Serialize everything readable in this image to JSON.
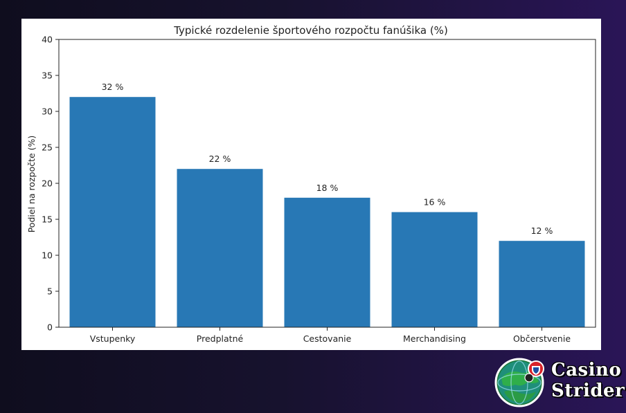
{
  "brand": {
    "line1": "Casino",
    "line2": "Strider"
  },
  "chart_data": {
    "type": "bar",
    "title": "Typické rozdelenie športového rozpočtu fanúšika (%)",
    "xlabel": "",
    "ylabel": "Podiel na rozpočte (%)",
    "categories": [
      "Vstupenky",
      "Predplatné",
      "Cestovanie",
      "Merchandising",
      "Občerstvenie"
    ],
    "values": [
      32,
      22,
      18,
      16,
      12
    ],
    "data_labels": [
      "32 %",
      "22 %",
      "18 %",
      "16 %",
      "12 %"
    ],
    "ylim": [
      0,
      40
    ],
    "yticks": [
      0,
      5,
      10,
      15,
      20,
      25,
      30,
      35,
      40
    ],
    "grid": false,
    "bar_color": "#2878b5"
  }
}
